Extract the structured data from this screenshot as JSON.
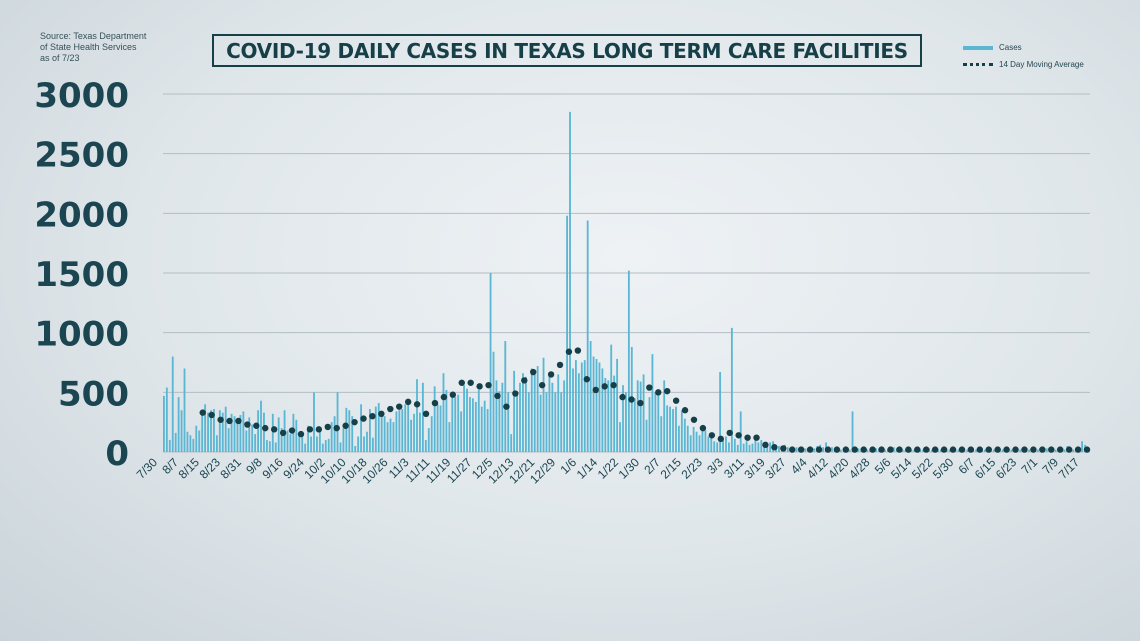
{
  "source": {
    "lines": [
      "Source: Texas Department",
      "of State Health Services",
      "as of 7/23"
    ]
  },
  "title": "COVID-19 DAILY CASES IN TEXAS LONG TERM CARE FACILITIES",
  "legend": {
    "cases_label": "Cases",
    "average_label": "14 Day Moving Average"
  },
  "colors": {
    "bars": "#5ab6d3",
    "average_dots": "#173f48",
    "axis_text": "#1b4651",
    "gridline": "#b3bec4"
  },
  "chart_data": {
    "type": "bar",
    "title": "COVID-19 DAILY CASES IN TEXAS LONG TERM CARE FACILITIES",
    "xlabel": "",
    "ylabel": "",
    "ylim": [
      0,
      3000
    ],
    "yticks": [
      0,
      500,
      1000,
      1500,
      2000,
      2500,
      3000
    ],
    "grid": true,
    "legend_position": "top-right",
    "x_tick_labels": [
      "7/30",
      "8/7",
      "8/15",
      "8/23",
      "8/31",
      "9/8",
      "9/16",
      "9/24",
      "10/2",
      "10/10",
      "10/18",
      "10/26",
      "11/3",
      "11/11",
      "11/19",
      "11/27",
      "12/5",
      "12/13",
      "12/21",
      "12/29",
      "1/6",
      "1/14",
      "1/22",
      "1/30",
      "2/7",
      "2/15",
      "2/23",
      "3/3",
      "3/11",
      "3/19",
      "3/27",
      "4/4",
      "4/12",
      "4/20",
      "4/28",
      "5/6",
      "5/14",
      "5/22",
      "5/30",
      "6/7",
      "6/15",
      "6/23",
      "7/1",
      "7/9",
      "7/17"
    ],
    "series": [
      {
        "name": "Cases",
        "type": "bar",
        "values": [
          470,
          540,
          100,
          800,
          160,
          460,
          350,
          700,
          170,
          140,
          110,
          220,
          180,
          340,
          400,
          330,
          350,
          360,
          140,
          350,
          330,
          380,
          200,
          320,
          300,
          260,
          310,
          340,
          180,
          290,
          230,
          150,
          350,
          430,
          330,
          100,
          90,
          320,
          80,
          290,
          200,
          350,
          180,
          150,
          320,
          270,
          160,
          170,
          70,
          220,
          130,
          500,
          130,
          200,
          70,
          100,
          110,
          250,
          300,
          500,
          80,
          200,
          370,
          350,
          300,
          50,
          130,
          400,
          130,
          170,
          360,
          120,
          380,
          410,
          330,
          300,
          250,
          280,
          250,
          340,
          350,
          360,
          400,
          430,
          270,
          320,
          610,
          330,
          580,
          100,
          200,
          300,
          550,
          400,
          390,
          660,
          520,
          250,
          480,
          460,
          480,
          340,
          560,
          530,
          460,
          450,
          420,
          520,
          380,
          430,
          360,
          1500,
          840,
          600,
          510,
          580,
          930,
          500,
          150,
          680,
          500,
          580,
          660,
          630,
          500,
          700,
          650,
          720,
          480,
          790,
          500,
          650,
          580,
          500,
          650,
          500,
          600,
          1980,
          2850,
          700,
          770,
          660,
          750,
          770,
          1940,
          930,
          800,
          780,
          750,
          700,
          620,
          600,
          900,
          640,
          780,
          250,
          560,
          500,
          1520,
          880,
          450,
          600,
          590,
          650,
          270,
          460,
          820,
          500,
          480,
          300,
          600,
          390,
          380,
          360,
          380,
          220,
          350,
          280,
          220,
          140,
          210,
          170,
          140,
          200,
          180,
          130,
          120,
          90,
          80,
          670,
          100,
          130,
          80,
          1040,
          110,
          60,
          340,
          70,
          90,
          60,
          70,
          120,
          80,
          100,
          60,
          50,
          80,
          90,
          60,
          50,
          40,
          60,
          40,
          30,
          30,
          40,
          20,
          20,
          30,
          30,
          20,
          30,
          50,
          60,
          40,
          80,
          30,
          40,
          30,
          30,
          20,
          20,
          30,
          20,
          340,
          20,
          30,
          20,
          30,
          20,
          20,
          20,
          30,
          20,
          30,
          20,
          20,
          20,
          40,
          30,
          20,
          20,
          20,
          30,
          20,
          20,
          20,
          20,
          20,
          20,
          30,
          20,
          20,
          20,
          20,
          20,
          20,
          20,
          20,
          20,
          20,
          20,
          20,
          20,
          20,
          20,
          20,
          20,
          20,
          20,
          20,
          20,
          20,
          20,
          20,
          20,
          20,
          20,
          20,
          20,
          20,
          20,
          20,
          20,
          20,
          20,
          20,
          20,
          20,
          20,
          30,
          20,
          20,
          20,
          20,
          20,
          20,
          50,
          20,
          20,
          30,
          20,
          90,
          60,
          30
        ]
      },
      {
        "name": "14 Day Moving Average",
        "type": "dots",
        "values": [
          330,
          310,
          270,
          260,
          260,
          230,
          220,
          200,
          190,
          160,
          180,
          150,
          190,
          190,
          210,
          200,
          220,
          250,
          280,
          300,
          320,
          360,
          380,
          420,
          400,
          320,
          410,
          460,
          480,
          580,
          580,
          550,
          560,
          470,
          380,
          490,
          600,
          670,
          560,
          650,
          730,
          840,
          850,
          610,
          520,
          550,
          560,
          460,
          440,
          410,
          540,
          500,
          510,
          430,
          350,
          270,
          200,
          140,
          110,
          160,
          140,
          120,
          120,
          60,
          40,
          30,
          20,
          20,
          20,
          20,
          20,
          20,
          20,
          20,
          20,
          20,
          20,
          20,
          20,
          20,
          20,
          20,
          20,
          20,
          20,
          20,
          20,
          20,
          20,
          20,
          20,
          20,
          20,
          20,
          20,
          20,
          20,
          20,
          20,
          20
        ]
      }
    ]
  }
}
